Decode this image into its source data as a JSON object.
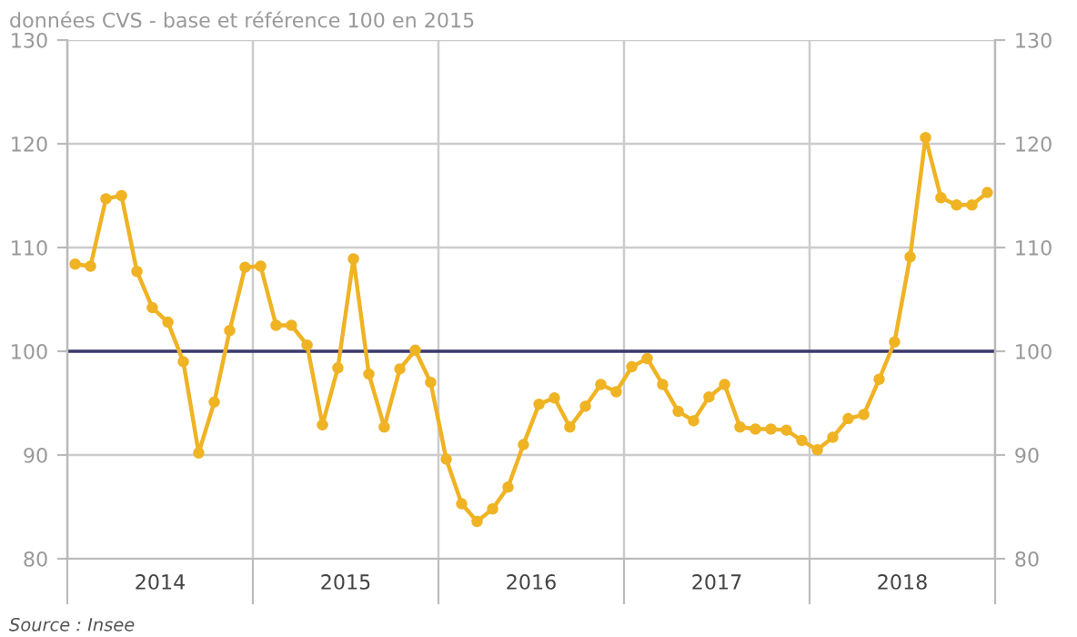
{
  "chart_data": {
    "type": "line",
    "title": "données CVS - base et référence 100 en 2015",
    "annotations": [
      "Source : Insee"
    ],
    "x": [
      2014.042,
      2014.125,
      2014.208,
      2014.292,
      2014.375,
      2014.458,
      2014.542,
      2014.625,
      2014.708,
      2014.792,
      2014.875,
      2014.958,
      2015.042,
      2015.125,
      2015.208,
      2015.292,
      2015.375,
      2015.458,
      2015.542,
      2015.625,
      2015.708,
      2015.792,
      2015.875,
      2015.958,
      2016.042,
      2016.125,
      2016.208,
      2016.292,
      2016.375,
      2016.458,
      2016.542,
      2016.625,
      2016.708,
      2016.792,
      2016.875,
      2016.958,
      2017.042,
      2017.125,
      2017.208,
      2017.292,
      2017.375,
      2017.458,
      2017.542,
      2017.625,
      2017.708,
      2017.792,
      2017.875,
      2017.958,
      2018.042,
      2018.125,
      2018.208,
      2018.292,
      2018.375,
      2018.458,
      2018.542,
      2018.625,
      2018.708,
      2018.792,
      2018.875,
      2018.958
    ],
    "series": [
      {
        "color": "#efb324",
        "values": [
          108.4,
          108.2,
          114.7,
          115.0,
          107.7,
          104.2,
          102.8,
          99.0,
          90.2,
          95.1,
          102.0,
          108.1,
          108.2,
          102.5,
          102.5,
          100.6,
          92.9,
          98.4,
          108.9,
          97.8,
          92.7,
          98.3,
          100.1,
          97.0,
          89.6,
          85.3,
          83.6,
          84.8,
          86.9,
          91.0,
          94.9,
          95.5,
          92.7,
          94.7,
          96.8,
          96.1,
          98.5,
          99.3,
          96.8,
          94.2,
          93.3,
          95.6,
          96.8,
          92.7,
          92.5,
          92.5,
          92.4,
          91.4,
          90.5,
          91.7,
          93.5,
          93.9,
          97.3,
          100.9,
          109.1,
          120.6,
          114.8,
          114.1,
          114.1,
          115.3
        ]
      }
    ],
    "xlim": [
      2014,
      2019
    ],
    "xticks": [
      {
        "value": 2014,
        "label": null
      },
      {
        "value": 2014.5,
        "label": "2014"
      },
      {
        "value": 2015,
        "label": null
      },
      {
        "value": 2015.5,
        "label": "2015"
      },
      {
        "value": 2016,
        "label": null
      },
      {
        "value": 2016.5,
        "label": "2016"
      },
      {
        "value": 2017,
        "label": null
      },
      {
        "value": 2017.5,
        "label": "2017"
      },
      {
        "value": 2018,
        "label": null
      },
      {
        "value": 2018.5,
        "label": "2018"
      },
      {
        "value": 2019,
        "label": null
      }
    ],
    "ylim": [
      80,
      130
    ],
    "yticks": [
      80,
      90,
      100,
      110,
      120,
      130
    ],
    "y2lim": [
      80,
      130
    ],
    "y2ticks": [
      80,
      90,
      100,
      110,
      120,
      130
    ],
    "ref_lines": [
      {
        "axis": "y",
        "value": 100,
        "label": null,
        "color": "#3a3a6e"
      }
    ],
    "grid": true,
    "marker": "circle",
    "line_style": "solid"
  }
}
